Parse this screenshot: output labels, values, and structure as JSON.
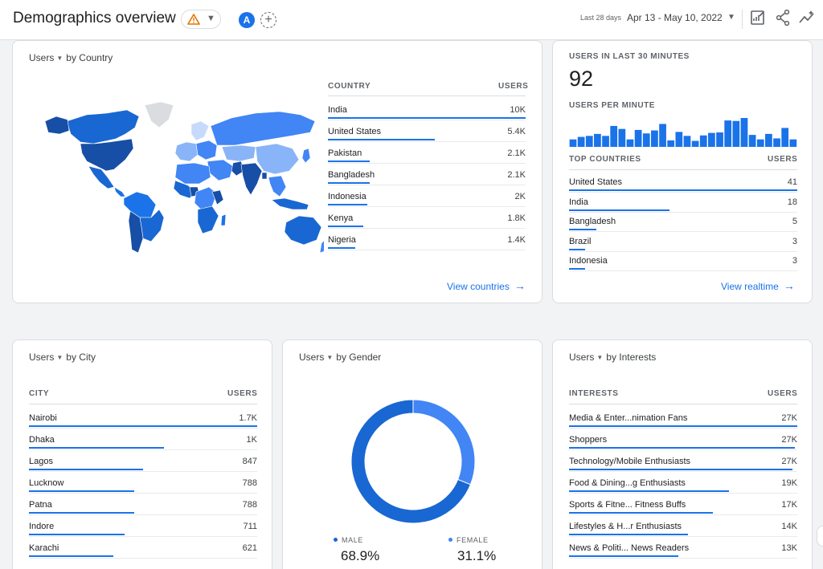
{
  "header": {
    "title": "Demographics overview",
    "compare_avatar": "A",
    "add_compare": "+",
    "date_small": "Last 28 days",
    "date_range": "Apr 13 - May 10, 2022",
    "icons": [
      "warning-icon",
      "customize-report-icon",
      "share-icon",
      "insights-icon"
    ]
  },
  "country_card": {
    "metric": "Users",
    "dimension": "by Country",
    "col_label": "COUNTRY",
    "col_value": "USERS",
    "rows": [
      {
        "label": "India",
        "value": "10K",
        "share": 1.0
      },
      {
        "label": "United States",
        "value": "5.4K",
        "share": 0.54
      },
      {
        "label": "Pakistan",
        "value": "2.1K",
        "share": 0.21
      },
      {
        "label": "Bangladesh",
        "value": "2.1K",
        "share": 0.21
      },
      {
        "label": "Indonesia",
        "value": "2K",
        "share": 0.2
      },
      {
        "label": "Kenya",
        "value": "1.8K",
        "share": 0.18
      },
      {
        "label": "Nigeria",
        "value": "1.4K",
        "share": 0.14
      }
    ],
    "link": "View countries"
  },
  "realtime_card": {
    "users_30_label": "USERS IN LAST 30 MINUTES",
    "users_30_value": "92",
    "per_minute_label": "USERS PER MINUTE",
    "per_minute_values": [
      1.5,
      2,
      2.2,
      2.6,
      2.2,
      4.2,
      3.6,
      1.5,
      3.4,
      2.7,
      3.3,
      4.6,
      1.3,
      3,
      2.2,
      1.2,
      2.3,
      2.8,
      2.9,
      5.3,
      5.2,
      5.8,
      2.4,
      1.5,
      2.6,
      1.7,
      3.8,
      1.5
    ],
    "col_label": "TOP COUNTRIES",
    "col_value": "USERS",
    "rows": [
      {
        "label": "United States",
        "value": "41",
        "share": 1.0
      },
      {
        "label": "India",
        "value": "18",
        "share": 0.44
      },
      {
        "label": "Bangladesh",
        "value": "5",
        "share": 0.12
      },
      {
        "label": "Brazil",
        "value": "3",
        "share": 0.07
      },
      {
        "label": "Indonesia",
        "value": "3",
        "share": 0.07
      }
    ],
    "link": "View realtime"
  },
  "city_card": {
    "metric": "Users",
    "dimension": "by City",
    "col_label": "CITY",
    "col_value": "USERS",
    "rows": [
      {
        "label": "Nairobi",
        "value": "1.7K",
        "share": 1.0
      },
      {
        "label": "Dhaka",
        "value": "1K",
        "share": 0.59
      },
      {
        "label": "Lagos",
        "value": "847",
        "share": 0.5
      },
      {
        "label": "Lucknow",
        "value": "788",
        "share": 0.46
      },
      {
        "label": "Patna",
        "value": "788",
        "share": 0.46
      },
      {
        "label": "Indore",
        "value": "711",
        "share": 0.42
      },
      {
        "label": "Karachi",
        "value": "621",
        "share": 0.37
      }
    ]
  },
  "gender_card": {
    "metric": "Users",
    "dimension": "by Gender",
    "segments": [
      {
        "label": "MALE",
        "value": "68.9%",
        "fraction": 0.689,
        "color": "#1967d2"
      },
      {
        "label": "FEMALE",
        "value": "31.1%",
        "fraction": 0.311,
        "color": "#4285f4"
      }
    ]
  },
  "interests_card": {
    "metric": "Users",
    "dimension": "by Interests",
    "col_label": "INTERESTS",
    "col_value": "USERS",
    "rows": [
      {
        "label": "Media & Enter...nimation Fans",
        "value": "27K",
        "share": 1.0
      },
      {
        "label": "Shoppers",
        "value": "27K",
        "share": 0.99
      },
      {
        "label": "Technology/Mobile Enthusiasts",
        "value": "27K",
        "share": 0.98
      },
      {
        "label": "Food & Dining...g Enthusiasts",
        "value": "19K",
        "share": 0.7
      },
      {
        "label": "Sports & Fitne... Fitness Buffs",
        "value": "17K",
        "share": 0.63
      },
      {
        "label": "Lifestyles & H...r Enthusiasts",
        "value": "14K",
        "share": 0.52
      },
      {
        "label": "News & Politi... News Readers",
        "value": "13K",
        "share": 0.48
      }
    ]
  },
  "colors": {
    "accent": "#1a73e8",
    "dark": "#174ea6",
    "mid": "#1967d2",
    "light": "#4285f4",
    "pale": "#8ab4f8",
    "palest": "#c6dafc",
    "nodata": "#dadce0"
  }
}
